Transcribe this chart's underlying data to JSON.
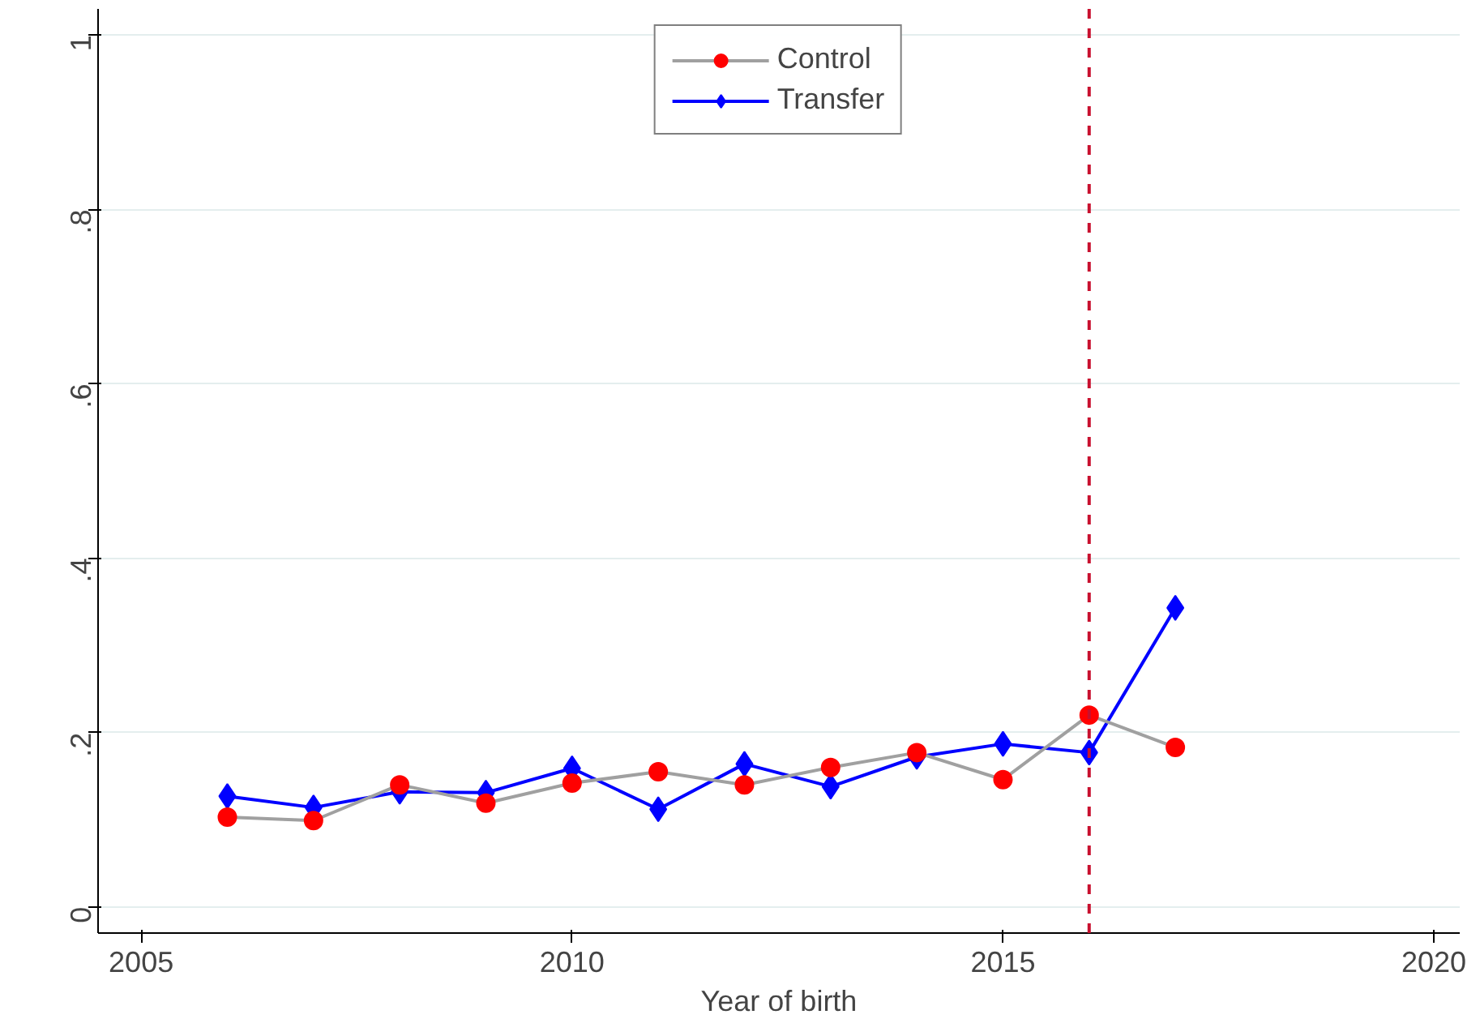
{
  "chart_data": {
    "type": "line",
    "xlabel": "Year of birth",
    "x": [
      2006,
      2007,
      2008,
      2009,
      2010,
      2011,
      2012,
      2013,
      2014,
      2015,
      2016,
      2017
    ],
    "series": [
      {
        "name": "Control",
        "color": "#ff0000",
        "marker": "circle",
        "values": [
          0.103,
          0.099,
          0.14,
          0.119,
          0.142,
          0.155,
          0.14,
          0.16,
          0.177,
          0.146,
          0.22,
          0.183
        ]
      },
      {
        "name": "Transfer",
        "color": "#0000ff",
        "marker": "diamond",
        "values": [
          0.127,
          0.114,
          0.132,
          0.131,
          0.159,
          0.112,
          0.164,
          0.138,
          0.172,
          0.187,
          0.177,
          0.343
        ]
      }
    ],
    "xlim": [
      2004.5,
      2020.3
    ],
    "xticks": [
      2005,
      2010,
      2015,
      2020
    ],
    "ylim": [
      -0.03,
      1.03
    ],
    "yticks": [
      {
        "value": 0,
        "label": "0"
      },
      {
        "value": 0.2,
        "label": ".2"
      },
      {
        "value": 0.4,
        "label": ".4"
      },
      {
        "value": 0.6,
        "label": ".6"
      },
      {
        "value": 0.8,
        "label": ".8"
      },
      {
        "value": 1,
        "label": "1"
      }
    ],
    "ref_lines": [
      {
        "axis": "x",
        "value": 2016,
        "color": "#c8102e",
        "line_style": "dashed"
      }
    ],
    "grid": "y",
    "legend": "top",
    "line_style": "solid"
  }
}
